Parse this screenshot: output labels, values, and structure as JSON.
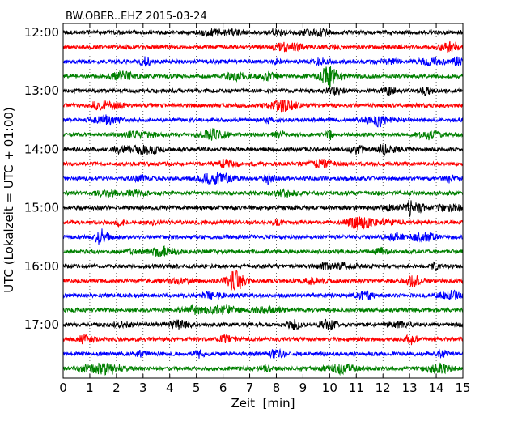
{
  "chart_data": {
    "type": "line",
    "title": "BW.OBER..EHZ 2015-03-24",
    "xlabel": "Zeit  [min]",
    "ylabel": "UTC (Lokalzeit = UTC + 01:00)",
    "xlim": [
      0,
      15
    ],
    "x_ticks": [
      "0",
      "1",
      "2",
      "3",
      "4",
      "5",
      "6",
      "7",
      "8",
      "9",
      "10",
      "11",
      "12",
      "13",
      "14",
      "15"
    ],
    "y_ticks": [
      "12:00",
      "13:00",
      "14:00",
      "15:00",
      "16:00",
      "17:00"
    ],
    "grid": "vertical dotted",
    "color_cycle": [
      "#000000",
      "#ff0000",
      "#0000ff",
      "#008000"
    ],
    "trace_interval_min": 15,
    "series": [
      {
        "start": "12:00",
        "color": "#000000"
      },
      {
        "start": "12:15",
        "color": "#ff0000"
      },
      {
        "start": "12:30",
        "color": "#0000ff"
      },
      {
        "start": "12:45",
        "color": "#008000"
      },
      {
        "start": "13:00",
        "color": "#000000"
      },
      {
        "start": "13:15",
        "color": "#ff0000"
      },
      {
        "start": "13:30",
        "color": "#0000ff"
      },
      {
        "start": "13:45",
        "color": "#008000"
      },
      {
        "start": "14:00",
        "color": "#000000"
      },
      {
        "start": "14:15",
        "color": "#ff0000"
      },
      {
        "start": "14:30",
        "color": "#0000ff"
      },
      {
        "start": "14:45",
        "color": "#008000"
      },
      {
        "start": "15:00",
        "color": "#000000"
      },
      {
        "start": "15:15",
        "color": "#ff0000"
      },
      {
        "start": "15:30",
        "color": "#0000ff"
      },
      {
        "start": "15:45",
        "color": "#008000"
      },
      {
        "start": "16:00",
        "color": "#000000"
      },
      {
        "start": "16:15",
        "color": "#ff0000"
      },
      {
        "start": "16:30",
        "color": "#0000ff"
      },
      {
        "start": "16:45",
        "color": "#008000"
      },
      {
        "start": "17:00",
        "color": "#000000"
      },
      {
        "start": "17:15",
        "color": "#ff0000"
      },
      {
        "start": "17:30",
        "color": "#0000ff"
      },
      {
        "start": "17:45",
        "color": "#008000"
      }
    ]
  }
}
